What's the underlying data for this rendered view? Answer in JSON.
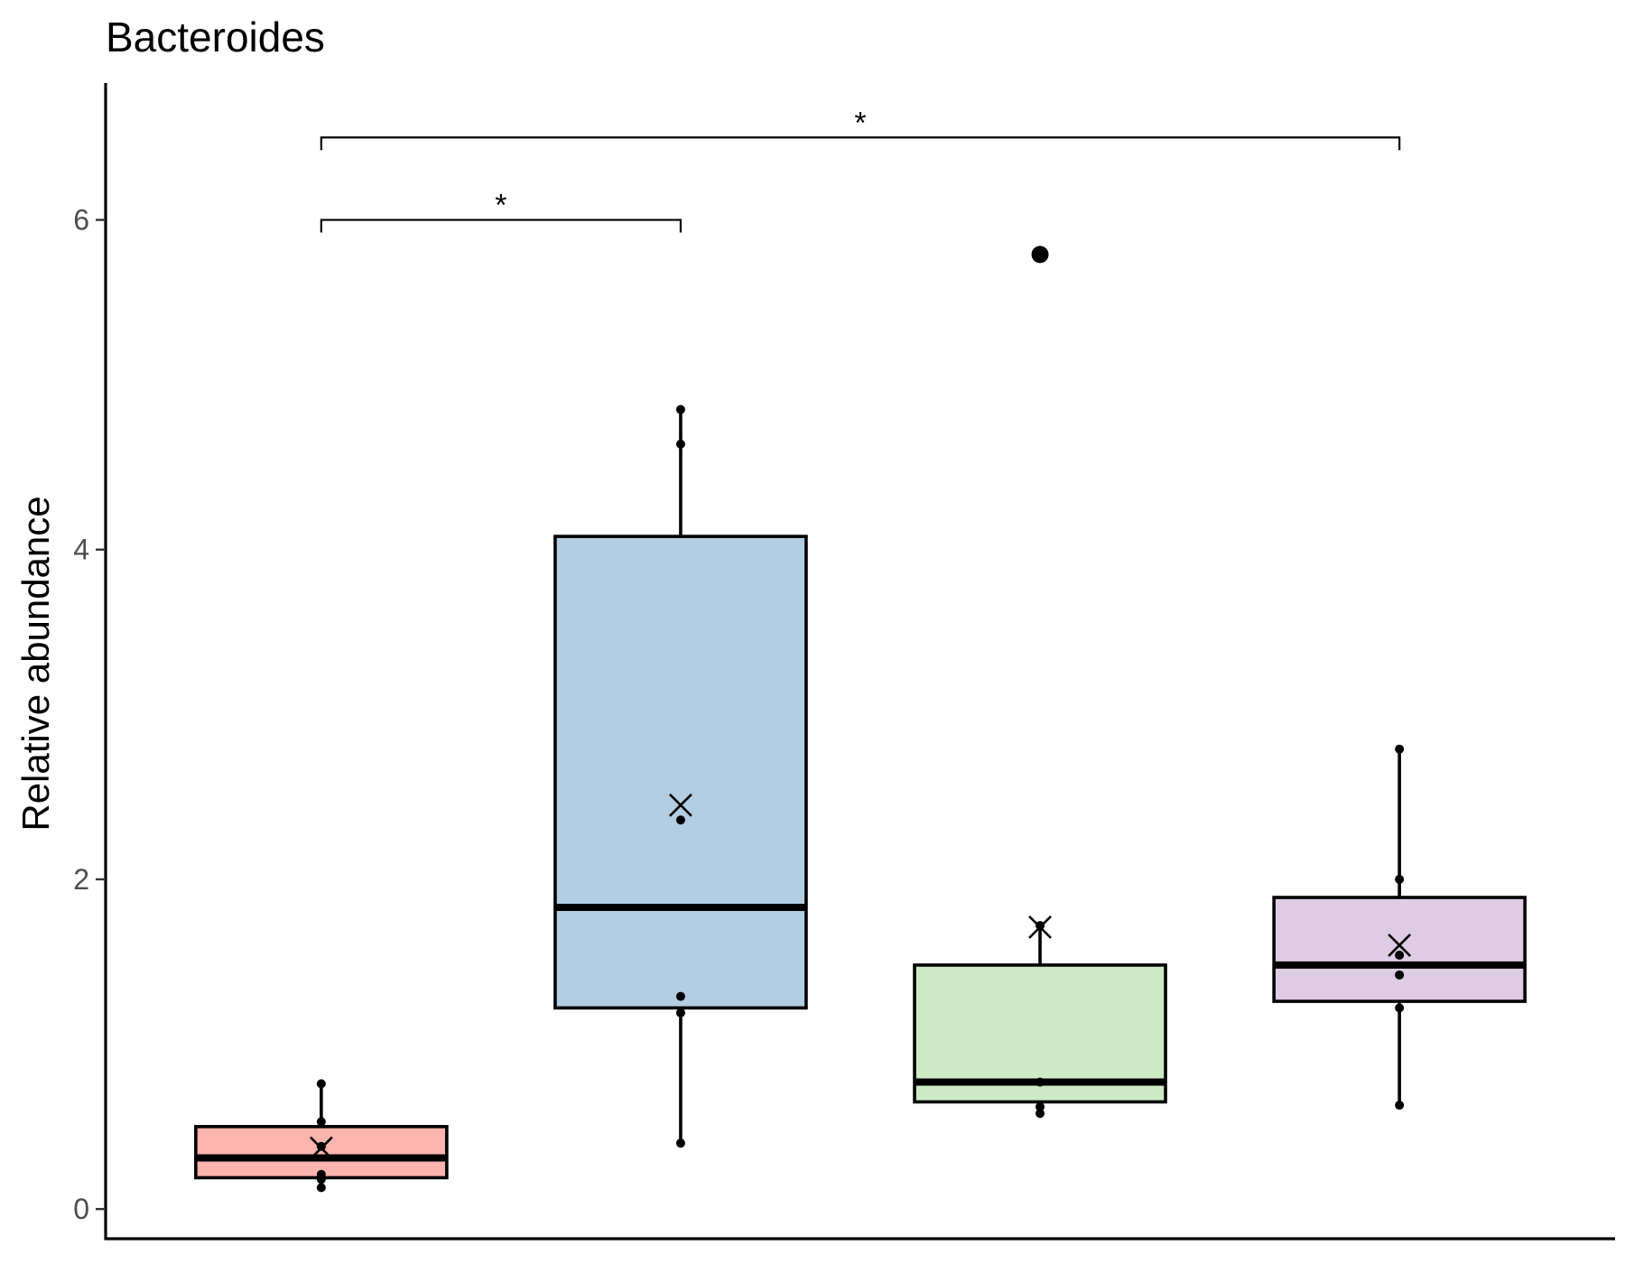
{
  "chart_data": {
    "type": "box",
    "title": "Bacteroides",
    "xlabel": "",
    "ylabel": "Relative abundance",
    "ylim": [
      -0.18,
      6.83
    ],
    "yticks": [
      0,
      2,
      4,
      6
    ],
    "ytick_labels": [
      "0",
      "2",
      "4",
      "6"
    ],
    "grid": false,
    "legend": "none",
    "groups": [
      {
        "color": "#fbb4ae",
        "q1": 0.19,
        "median": 0.31,
        "q3": 0.5,
        "whisker_low": 0.13,
        "whisker_high": 0.76,
        "mean": 0.37,
        "points": [
          0.13,
          0.18,
          0.21,
          0.38,
          0.53,
          0.76
        ],
        "outliers": []
      },
      {
        "color": "#b3cde3",
        "q1": 1.22,
        "median": 1.83,
        "q3": 4.08,
        "whisker_low": 0.4,
        "whisker_high": 4.85,
        "mean": 2.45,
        "points": [
          0.4,
          1.19,
          1.29,
          2.36,
          4.64,
          4.85
        ],
        "outliers": []
      },
      {
        "color": "#ccebc5",
        "q1": 0.65,
        "median": 0.77,
        "q3": 1.48,
        "whisker_low": 0.58,
        "whisker_high": 1.72,
        "mean": 1.71,
        "points": [
          0.58,
          0.62,
          0.77,
          1.72
        ],
        "outliers": [
          5.79
        ]
      },
      {
        "color": "#decbe4",
        "q1": 1.26,
        "median": 1.48,
        "q3": 1.89,
        "whisker_low": 0.63,
        "whisker_high": 2.79,
        "mean": 1.6,
        "points": [
          0.63,
          1.22,
          1.42,
          1.54,
          2.0,
          2.79
        ],
        "outliers": []
      }
    ],
    "comparisons": [
      {
        "from": 1,
        "to": 2,
        "y": 6.0,
        "label": "*"
      },
      {
        "from": 1,
        "to": 4,
        "y": 6.5,
        "label": "*"
      }
    ]
  }
}
